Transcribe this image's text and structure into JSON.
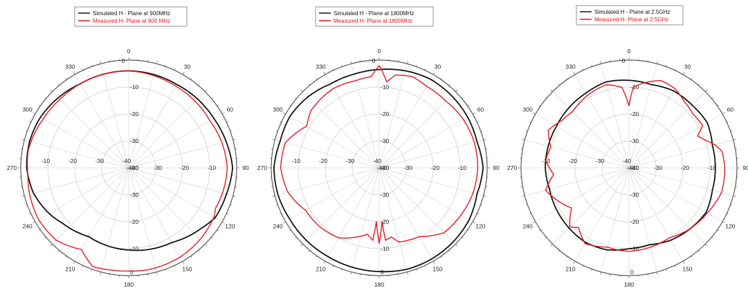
{
  "chart_data": [
    {
      "type": "polar",
      "rlim": [
        -40,
        0
      ],
      "radial_ticks": [
        -40,
        -30,
        -20,
        -10,
        0
      ],
      "radial_tick_labels": [
        "-40",
        "-30",
        "-20",
        "-10",
        "0"
      ],
      "angle_ticks": [
        "0",
        "30",
        "60",
        "90",
        "120",
        "150",
        "180",
        "210",
        "240",
        "270",
        "300",
        "330"
      ],
      "grid": true,
      "legend_position": "top",
      "series": [
        {
          "name": "Simulated H - Plane at 900MHz",
          "color": "#111111",
          "r_by_angle_deg": [
            [
              0,
              -4.0
            ],
            [
              30,
              -4.3
            ],
            [
              60,
              -3.5
            ],
            [
              75,
              -2.6
            ],
            [
              90,
              -1.5
            ],
            [
              105,
              -2.5
            ],
            [
              120,
              -3.0
            ],
            [
              130,
              -5.0
            ],
            [
              150,
              -8.0
            ],
            [
              180,
              -9.5
            ],
            [
              210,
              -10.5
            ],
            [
              230,
              -8.0
            ],
            [
              240,
              -6.0
            ],
            [
              255,
              -3.5
            ],
            [
              270,
              -2.2
            ],
            [
              285,
              -2.0
            ],
            [
              300,
              -2.3
            ],
            [
              330,
              -4.0
            ],
            [
              360,
              -4.0
            ]
          ]
        },
        {
          "name": "Measured H- Plane at 900 MHz",
          "color": "#e8141c",
          "r_by_angle_deg": [
            [
              0,
              -4.0
            ],
            [
              20,
              -4.7
            ],
            [
              30,
              -5.0
            ],
            [
              60,
              -5.2
            ],
            [
              75,
              -4.2
            ],
            [
              90,
              -3.5
            ],
            [
              105,
              -4.0
            ],
            [
              115,
              -4.5
            ],
            [
              120,
              -3.5
            ],
            [
              135,
              -2.5
            ],
            [
              150,
              -1.8
            ],
            [
              170,
              -1.5
            ],
            [
              180,
              -1.7
            ],
            [
              190,
              -1.5
            ],
            [
              200,
              -1.0
            ],
            [
              205,
              -3.0
            ],
            [
              210,
              -5.0
            ],
            [
              225,
              -2.0
            ],
            [
              240,
              -1.5
            ],
            [
              255,
              -2.0
            ],
            [
              265,
              -2.5
            ],
            [
              270,
              -2.5
            ],
            [
              280,
              -2.2
            ],
            [
              300,
              -3.5
            ],
            [
              315,
              -4.0
            ],
            [
              330,
              -4.0
            ],
            [
              360,
              -4.0
            ]
          ]
        }
      ]
    },
    {
      "type": "polar",
      "rlim": [
        -40,
        0
      ],
      "radial_ticks": [
        -40,
        -30,
        -20,
        -10,
        0
      ],
      "radial_tick_labels": [
        "-40",
        "-30",
        "-20",
        "-10",
        "0"
      ],
      "angle_ticks": [
        "0",
        "30",
        "60",
        "90",
        "120",
        "150",
        "180",
        "210",
        "240",
        "270",
        "300",
        "330"
      ],
      "grid": true,
      "legend_position": "top",
      "series": [
        {
          "name": "Simulated H - Plane at 1800MHz",
          "color": "#111111",
          "r_by_angle_deg": [
            [
              0,
              -3.5
            ],
            [
              15,
              -2.7
            ],
            [
              30,
              -2.0
            ],
            [
              60,
              -2.2
            ],
            [
              75,
              -2.5
            ],
            [
              90,
              -1.5
            ],
            [
              105,
              -2.5
            ],
            [
              120,
              -1.5
            ],
            [
              135,
              -1.2
            ],
            [
              150,
              -1.0
            ],
            [
              165,
              -1.0
            ],
            [
              180,
              -1.5
            ],
            [
              195,
              -1.8
            ],
            [
              210,
              -2.0
            ],
            [
              240,
              -1.8
            ],
            [
              255,
              -1.2
            ],
            [
              270,
              -1.0
            ],
            [
              285,
              -2.0
            ],
            [
              300,
              -1.8
            ],
            [
              315,
              -2.7
            ],
            [
              330,
              -4.0
            ],
            [
              345,
              -4.0
            ],
            [
              360,
              -3.5
            ]
          ]
        },
        {
          "name": "Measured H- Plane at 1800MHz",
          "color": "#e8141c",
          "r_by_angle_deg": [
            [
              0,
              -2.0
            ],
            [
              5,
              -8.0
            ],
            [
              10,
              -5.0
            ],
            [
              20,
              -4.0
            ],
            [
              30,
              -5.0
            ],
            [
              45,
              -5.0
            ],
            [
              60,
              -4.0
            ],
            [
              75,
              -3.5
            ],
            [
              90,
              -3.5
            ],
            [
              105,
              -4.0
            ],
            [
              120,
              -5.0
            ],
            [
              135,
              -6.0
            ],
            [
              150,
              -10.5
            ],
            [
              165,
              -11.5
            ],
            [
              170,
              -14.0
            ],
            [
              175,
              -13.0
            ],
            [
              177,
              -20.0
            ],
            [
              180,
              -12.0
            ],
            [
              183,
              -20.0
            ],
            [
              185,
              -13.0
            ],
            [
              190,
              -15.0
            ],
            [
              200,
              -12.5
            ],
            [
              210,
              -10.0
            ],
            [
              225,
              -9.0
            ],
            [
              240,
              -8.5
            ],
            [
              255,
              -5.0
            ],
            [
              270,
              -3.5
            ],
            [
              285,
              -4.0
            ],
            [
              300,
              -9.0
            ],
            [
              310,
              -7.0
            ],
            [
              330,
              -6.0
            ],
            [
              345,
              -6.5
            ],
            [
              355,
              -6.0
            ],
            [
              360,
              -2.0
            ]
          ]
        }
      ]
    },
    {
      "type": "polar",
      "rlim": [
        -40,
        0
      ],
      "radial_ticks": [
        -40,
        -30,
        -20,
        -10,
        0
      ],
      "radial_tick_labels": [
        "-40",
        "-30",
        "-20",
        "-10",
        "0"
      ],
      "angle_ticks": [
        "0",
        "30",
        "60",
        "90",
        "120",
        "150",
        "180",
        "210",
        "240",
        "270",
        "300",
        "330"
      ],
      "grid": true,
      "legend_position": "top",
      "series": [
        {
          "name": "Simulated H - Plane at 2.5GHz",
          "color": "#111111",
          "r_by_angle_deg": [
            [
              0,
              -7.5
            ],
            [
              15,
              -8.0
            ],
            [
              30,
              -7.0
            ],
            [
              45,
              -7.0
            ],
            [
              60,
              -6.5
            ],
            [
              75,
              -8.0
            ],
            [
              90,
              -8.0
            ],
            [
              105,
              -8.0
            ],
            [
              120,
              -7.0
            ],
            [
              135,
              -8.0
            ],
            [
              150,
              -9.0
            ],
            [
              165,
              -10.5
            ],
            [
              180,
              -10.0
            ],
            [
              195,
              -8.5
            ],
            [
              210,
              -8.0
            ],
            [
              225,
              -8.5
            ],
            [
              240,
              -9.0
            ],
            [
              255,
              -9.5
            ],
            [
              270,
              -9.0
            ],
            [
              285,
              -9.0
            ],
            [
              300,
              -9.0
            ],
            [
              315,
              -8.5
            ],
            [
              330,
              -8.0
            ],
            [
              345,
              -7.0
            ],
            [
              360,
              -7.5
            ]
          ]
        },
        {
          "name": "Measured H- Plane at 2.5GHz",
          "color": "#e8141c",
          "r_by_angle_deg": [
            [
              0,
              -17.0
            ],
            [
              3,
              -10.0
            ],
            [
              10,
              -8.0
            ],
            [
              20,
              -5.5
            ],
            [
              30,
              -6.0
            ],
            [
              40,
              -8.0
            ],
            [
              50,
              -9.0
            ],
            [
              60,
              -8.5
            ],
            [
              65,
              -12.0
            ],
            [
              70,
              -10.0
            ],
            [
              75,
              -7.0
            ],
            [
              80,
              -5.0
            ],
            [
              90,
              -4.5
            ],
            [
              105,
              -4.5
            ],
            [
              120,
              -6.5
            ],
            [
              135,
              -8.0
            ],
            [
              150,
              -10.0
            ],
            [
              165,
              -9.5
            ],
            [
              180,
              -9.0
            ],
            [
              195,
              -9.5
            ],
            [
              210,
              -7.5
            ],
            [
              220,
              -11.0
            ],
            [
              225,
              -9.0
            ],
            [
              235,
              -14.0
            ],
            [
              245,
              -11.0
            ],
            [
              255,
              -8.0
            ],
            [
              265,
              -12.0
            ],
            [
              275,
              -9.0
            ],
            [
              285,
              -10.0
            ],
            [
              295,
              -7.0
            ],
            [
              305,
              -9.5
            ],
            [
              315,
              -10.5
            ],
            [
              330,
              -9.0
            ],
            [
              345,
              -8.0
            ],
            [
              355,
              -10.0
            ],
            [
              360,
              -17.0
            ]
          ]
        }
      ]
    }
  ]
}
